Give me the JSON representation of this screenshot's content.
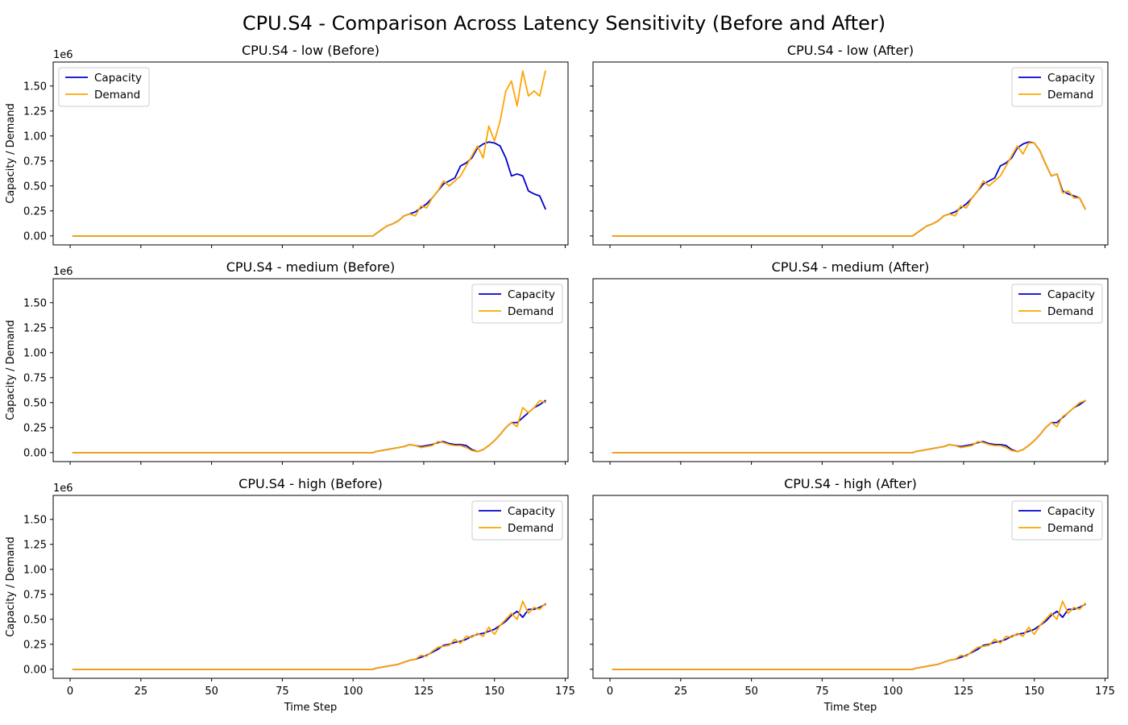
{
  "chart_data": {
    "type": "line",
    "title": "CPU.S4 - Comparison Across Latency Sensitivity (Before and After)",
    "xlabel": "Time Step",
    "ylabel": "Capacity / Demand",
    "y_offset_label": "1e6",
    "xlim": [
      -6,
      176
    ],
    "ylim": [
      -0.09,
      1.74
    ],
    "x_ticks": [
      0,
      25,
      50,
      75,
      100,
      125,
      150,
      175
    ],
    "y_ticks": [
      0.0,
      0.25,
      0.5,
      0.75,
      1.0,
      1.25,
      1.5
    ],
    "y_tick_labels": [
      "0.00",
      "0.25",
      "0.50",
      "0.75",
      "1.00",
      "1.25",
      "1.50"
    ],
    "grid": false,
    "series_colors": {
      "Capacity": "#0000cc",
      "Demand": "#ffa500"
    },
    "panels": [
      {
        "title": "CPU.S4 - low (Before)",
        "legend": "upper-left",
        "series": [
          {
            "name": "Capacity",
            "x": [
              1,
              107,
              108,
              110,
              112,
              114,
              116,
              118,
              120,
              122,
              124,
              126,
              128,
              130,
              132,
              134,
              136,
              138,
              140,
              142,
              144,
              146,
              148,
              150,
              152,
              154,
              156,
              158,
              160,
              162,
              164,
              166,
              168
            ],
            "y": [
              0,
              0,
              0.02,
              0.06,
              0.1,
              0.12,
              0.15,
              0.2,
              0.22,
              0.24,
              0.28,
              0.32,
              0.38,
              0.45,
              0.52,
              0.55,
              0.58,
              0.7,
              0.73,
              0.78,
              0.88,
              0.92,
              0.94,
              0.93,
              0.9,
              0.78,
              0.6,
              0.62,
              0.6,
              0.45,
              0.42,
              0.4,
              0.27
            ]
          },
          {
            "name": "Demand",
            "x": [
              1,
              107,
              108,
              110,
              112,
              114,
              116,
              118,
              120,
              122,
              124,
              126,
              128,
              130,
              132,
              134,
              136,
              138,
              140,
              142,
              144,
              146,
              148,
              150,
              152,
              154,
              156,
              158,
              160,
              162,
              164,
              166,
              168
            ],
            "y": [
              0,
              0,
              0.02,
              0.06,
              0.1,
              0.12,
              0.15,
              0.2,
              0.22,
              0.2,
              0.3,
              0.28,
              0.38,
              0.45,
              0.55,
              0.5,
              0.55,
              0.6,
              0.7,
              0.8,
              0.9,
              0.78,
              1.1,
              0.95,
              1.15,
              1.45,
              1.55,
              1.3,
              1.65,
              1.4,
              1.45,
              1.4,
              1.65
            ]
          }
        ]
      },
      {
        "title": "CPU.S4 - low (After)",
        "legend": "upper-right",
        "series": [
          {
            "name": "Capacity",
            "x": [
              1,
              107,
              108,
              110,
              112,
              114,
              116,
              118,
              120,
              122,
              124,
              126,
              128,
              130,
              132,
              134,
              136,
              138,
              140,
              142,
              144,
              146,
              148,
              150,
              152,
              154,
              156,
              158,
              160,
              162,
              164,
              166,
              168
            ],
            "y": [
              0,
              0,
              0.02,
              0.06,
              0.1,
              0.12,
              0.15,
              0.2,
              0.22,
              0.24,
              0.28,
              0.32,
              0.38,
              0.45,
              0.52,
              0.55,
              0.58,
              0.7,
              0.73,
              0.78,
              0.88,
              0.92,
              0.94,
              0.93,
              0.85,
              0.72,
              0.6,
              0.62,
              0.45,
              0.42,
              0.4,
              0.38,
              0.27
            ]
          },
          {
            "name": "Demand",
            "x": [
              1,
              107,
              108,
              110,
              112,
              114,
              116,
              118,
              120,
              122,
              124,
              126,
              128,
              130,
              132,
              134,
              136,
              138,
              140,
              142,
              144,
              146,
              148,
              150,
              152,
              154,
              156,
              158,
              160,
              162,
              164,
              166,
              168
            ],
            "y": [
              0,
              0,
              0.02,
              0.06,
              0.1,
              0.12,
              0.15,
              0.2,
              0.22,
              0.2,
              0.3,
              0.28,
              0.38,
              0.45,
              0.55,
              0.5,
              0.55,
              0.6,
              0.7,
              0.8,
              0.9,
              0.82,
              0.93,
              0.93,
              0.85,
              0.72,
              0.6,
              0.62,
              0.43,
              0.45,
              0.38,
              0.38,
              0.27
            ]
          }
        ]
      },
      {
        "title": "CPU.S4 - medium (Before)",
        "legend": "upper-right",
        "series": [
          {
            "name": "Capacity",
            "x": [
              1,
              107,
              108,
              110,
              112,
              114,
              116,
              118,
              120,
              122,
              124,
              126,
              128,
              130,
              132,
              134,
              136,
              138,
              140,
              142,
              144,
              146,
              148,
              150,
              152,
              154,
              156,
              158,
              160,
              162,
              164,
              166,
              168
            ],
            "y": [
              0,
              0,
              0.01,
              0.02,
              0.03,
              0.04,
              0.05,
              0.06,
              0.08,
              0.07,
              0.06,
              0.07,
              0.08,
              0.1,
              0.11,
              0.09,
              0.08,
              0.08,
              0.07,
              0.03,
              0.01,
              0.03,
              0.07,
              0.12,
              0.18,
              0.25,
              0.3,
              0.3,
              0.35,
              0.4,
              0.45,
              0.48,
              0.52
            ]
          },
          {
            "name": "Demand",
            "x": [
              1,
              107,
              108,
              110,
              112,
              114,
              116,
              118,
              120,
              122,
              124,
              126,
              128,
              130,
              132,
              134,
              136,
              138,
              140,
              142,
              144,
              146,
              148,
              150,
              152,
              154,
              156,
              158,
              160,
              162,
              164,
              166,
              168
            ],
            "y": [
              0,
              0,
              0.01,
              0.02,
              0.03,
              0.04,
              0.05,
              0.06,
              0.08,
              0.07,
              0.05,
              0.06,
              0.07,
              0.11,
              0.1,
              0.08,
              0.07,
              0.07,
              0.05,
              0.02,
              0.01,
              0.03,
              0.07,
              0.12,
              0.18,
              0.25,
              0.3,
              0.26,
              0.45,
              0.4,
              0.45,
              0.52,
              0.5
            ]
          }
        ]
      },
      {
        "title": "CPU.S4 - medium (After)",
        "legend": "upper-right",
        "series": [
          {
            "name": "Capacity",
            "x": [
              1,
              107,
              108,
              110,
              112,
              114,
              116,
              118,
              120,
              122,
              124,
              126,
              128,
              130,
              132,
              134,
              136,
              138,
              140,
              142,
              144,
              146,
              148,
              150,
              152,
              154,
              156,
              158,
              160,
              162,
              164,
              166,
              168
            ],
            "y": [
              0,
              0,
              0.01,
              0.02,
              0.03,
              0.04,
              0.05,
              0.06,
              0.08,
              0.07,
              0.06,
              0.07,
              0.08,
              0.1,
              0.11,
              0.09,
              0.08,
              0.08,
              0.07,
              0.03,
              0.01,
              0.03,
              0.07,
              0.12,
              0.18,
              0.25,
              0.3,
              0.3,
              0.35,
              0.4,
              0.45,
              0.48,
              0.52
            ]
          },
          {
            "name": "Demand",
            "x": [
              1,
              107,
              108,
              110,
              112,
              114,
              116,
              118,
              120,
              122,
              124,
              126,
              128,
              130,
              132,
              134,
              136,
              138,
              140,
              142,
              144,
              146,
              148,
              150,
              152,
              154,
              156,
              158,
              160,
              162,
              164,
              166,
              168
            ],
            "y": [
              0,
              0,
              0.01,
              0.02,
              0.03,
              0.04,
              0.05,
              0.06,
              0.08,
              0.07,
              0.05,
              0.06,
              0.07,
              0.11,
              0.1,
              0.08,
              0.07,
              0.07,
              0.05,
              0.02,
              0.01,
              0.03,
              0.07,
              0.12,
              0.18,
              0.25,
              0.3,
              0.26,
              0.36,
              0.4,
              0.45,
              0.5,
              0.52
            ]
          }
        ]
      },
      {
        "title": "CPU.S4 - high (Before)",
        "legend": "upper-right",
        "series": [
          {
            "name": "Capacity",
            "x": [
              1,
              107,
              108,
              110,
              112,
              114,
              116,
              118,
              120,
              122,
              124,
              126,
              128,
              130,
              132,
              134,
              136,
              138,
              140,
              142,
              144,
              146,
              148,
              150,
              152,
              154,
              156,
              158,
              160,
              162,
              164,
              166,
              168
            ],
            "y": [
              0,
              0,
              0.01,
              0.02,
              0.03,
              0.04,
              0.05,
              0.07,
              0.09,
              0.1,
              0.12,
              0.14,
              0.17,
              0.2,
              0.24,
              0.25,
              0.27,
              0.28,
              0.3,
              0.33,
              0.35,
              0.36,
              0.38,
              0.4,
              0.44,
              0.48,
              0.54,
              0.58,
              0.52,
              0.6,
              0.6,
              0.62,
              0.65
            ]
          },
          {
            "name": "Demand",
            "x": [
              1,
              107,
              108,
              110,
              112,
              114,
              116,
              118,
              120,
              122,
              124,
              126,
              128,
              130,
              132,
              134,
              136,
              138,
              140,
              142,
              144,
              146,
              148,
              150,
              152,
              154,
              156,
              158,
              160,
              162,
              164,
              166,
              168
            ],
            "y": [
              0,
              0,
              0.01,
              0.02,
              0.03,
              0.04,
              0.05,
              0.07,
              0.09,
              0.1,
              0.14,
              0.13,
              0.18,
              0.22,
              0.23,
              0.24,
              0.3,
              0.26,
              0.33,
              0.32,
              0.36,
              0.33,
              0.42,
              0.35,
              0.44,
              0.5,
              0.56,
              0.5,
              0.68,
              0.56,
              0.62,
              0.6,
              0.66
            ]
          }
        ]
      },
      {
        "title": "CPU.S4 - high (After)",
        "legend": "upper-right",
        "series": [
          {
            "name": "Capacity",
            "x": [
              1,
              107,
              108,
              110,
              112,
              114,
              116,
              118,
              120,
              122,
              124,
              126,
              128,
              130,
              132,
              134,
              136,
              138,
              140,
              142,
              144,
              146,
              148,
              150,
              152,
              154,
              156,
              158,
              160,
              162,
              164,
              166,
              168
            ],
            "y": [
              0,
              0,
              0.01,
              0.02,
              0.03,
              0.04,
              0.05,
              0.07,
              0.09,
              0.1,
              0.12,
              0.14,
              0.17,
              0.2,
              0.24,
              0.25,
              0.27,
              0.28,
              0.3,
              0.33,
              0.35,
              0.36,
              0.38,
              0.4,
              0.44,
              0.48,
              0.54,
              0.58,
              0.52,
              0.6,
              0.6,
              0.62,
              0.65
            ]
          },
          {
            "name": "Demand",
            "x": [
              1,
              107,
              108,
              110,
              112,
              114,
              116,
              118,
              120,
              122,
              124,
              126,
              128,
              130,
              132,
              134,
              136,
              138,
              140,
              142,
              144,
              146,
              148,
              150,
              152,
              154,
              156,
              158,
              160,
              162,
              164,
              166,
              168
            ],
            "y": [
              0,
              0,
              0.01,
              0.02,
              0.03,
              0.04,
              0.05,
              0.07,
              0.09,
              0.1,
              0.14,
              0.13,
              0.18,
              0.22,
              0.23,
              0.24,
              0.3,
              0.26,
              0.33,
              0.32,
              0.36,
              0.33,
              0.42,
              0.35,
              0.44,
              0.5,
              0.56,
              0.5,
              0.68,
              0.56,
              0.62,
              0.6,
              0.66
            ]
          }
        ]
      }
    ]
  }
}
